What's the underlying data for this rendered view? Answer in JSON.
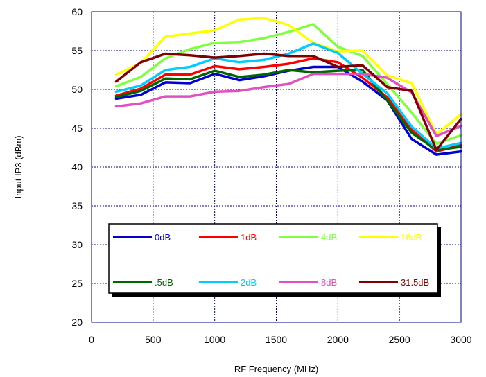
{
  "chart_data": {
    "type": "line",
    "title": "",
    "xlabel": "RF Frequency (MHz)",
    "ylabel": "Input IP3 (dBm)",
    "xlim": [
      0,
      3000
    ],
    "ylim": [
      20,
      60
    ],
    "xticks": [
      "0",
      "500",
      "1000",
      "1500",
      "2000",
      "2500",
      "3000"
    ],
    "yticks": [
      "20",
      "25",
      "30",
      "35",
      "40",
      "45",
      "50",
      "55",
      "60"
    ],
    "grid": true,
    "legend_position": "center-bottom",
    "x": [
      200,
      400,
      600,
      800,
      1000,
      1200,
      1400,
      1600,
      1800,
      2000,
      2200,
      2400,
      2600,
      2800,
      3000
    ],
    "series": [
      {
        "name": "0dB",
        "color": "#0000cc",
        "values": [
          48.8,
          49.3,
          50.9,
          50.8,
          52.0,
          51.2,
          51.7,
          52.4,
          52.9,
          52.9,
          51.0,
          48.6,
          43.6,
          41.6,
          42.0
        ]
      },
      {
        "name": "1dB",
        "color": "#ff0000",
        "values": [
          49.2,
          50.1,
          51.9,
          51.9,
          53.0,
          52.6,
          52.9,
          53.3,
          54.0,
          53.5,
          51.5,
          49.0,
          44.8,
          42.0,
          42.8
        ]
      },
      {
        "name": "4dB",
        "color": "#80ff40",
        "values": [
          50.4,
          51.6,
          54.0,
          55.2,
          56.0,
          56.1,
          56.6,
          57.4,
          58.4,
          55.5,
          54.3,
          50.7,
          47.0,
          43.0,
          44.1
        ]
      },
      {
        "name": "16dB",
        "color": "#ffff00",
        "values": [
          51.9,
          53.4,
          56.8,
          57.2,
          57.6,
          59.0,
          59.2,
          58.3,
          56.0,
          54.9,
          55.0,
          51.8,
          50.8,
          44.2,
          46.8
        ]
      },
      {
        "name": ".5dB",
        "color": "#006600",
        "values": [
          49.0,
          49.8,
          51.4,
          51.3,
          52.4,
          51.6,
          51.9,
          52.5,
          52.2,
          52.4,
          52.5,
          48.6,
          44.4,
          42.2,
          42.6
        ]
      },
      {
        "name": "2dB",
        "color": "#00ccff",
        "values": [
          49.7,
          50.5,
          52.5,
          52.9,
          54.0,
          53.5,
          53.8,
          54.6,
          55.9,
          54.7,
          52.0,
          49.5,
          45.2,
          42.4,
          43.1
        ]
      },
      {
        "name": "8dB",
        "color": "#e050c0",
        "values": [
          47.8,
          48.2,
          49.1,
          49.1,
          49.7,
          49.8,
          50.3,
          50.7,
          52.0,
          52.0,
          52.0,
          51.5,
          49.6,
          44.0,
          45.3
        ]
      },
      {
        "name": "31.5dB",
        "color": "#800000",
        "values": [
          51.0,
          53.5,
          54.6,
          54.4,
          54.1,
          54.3,
          54.6,
          54.3,
          54.3,
          52.9,
          53.1,
          50.3,
          49.8,
          42.2,
          46.2
        ]
      }
    ]
  }
}
